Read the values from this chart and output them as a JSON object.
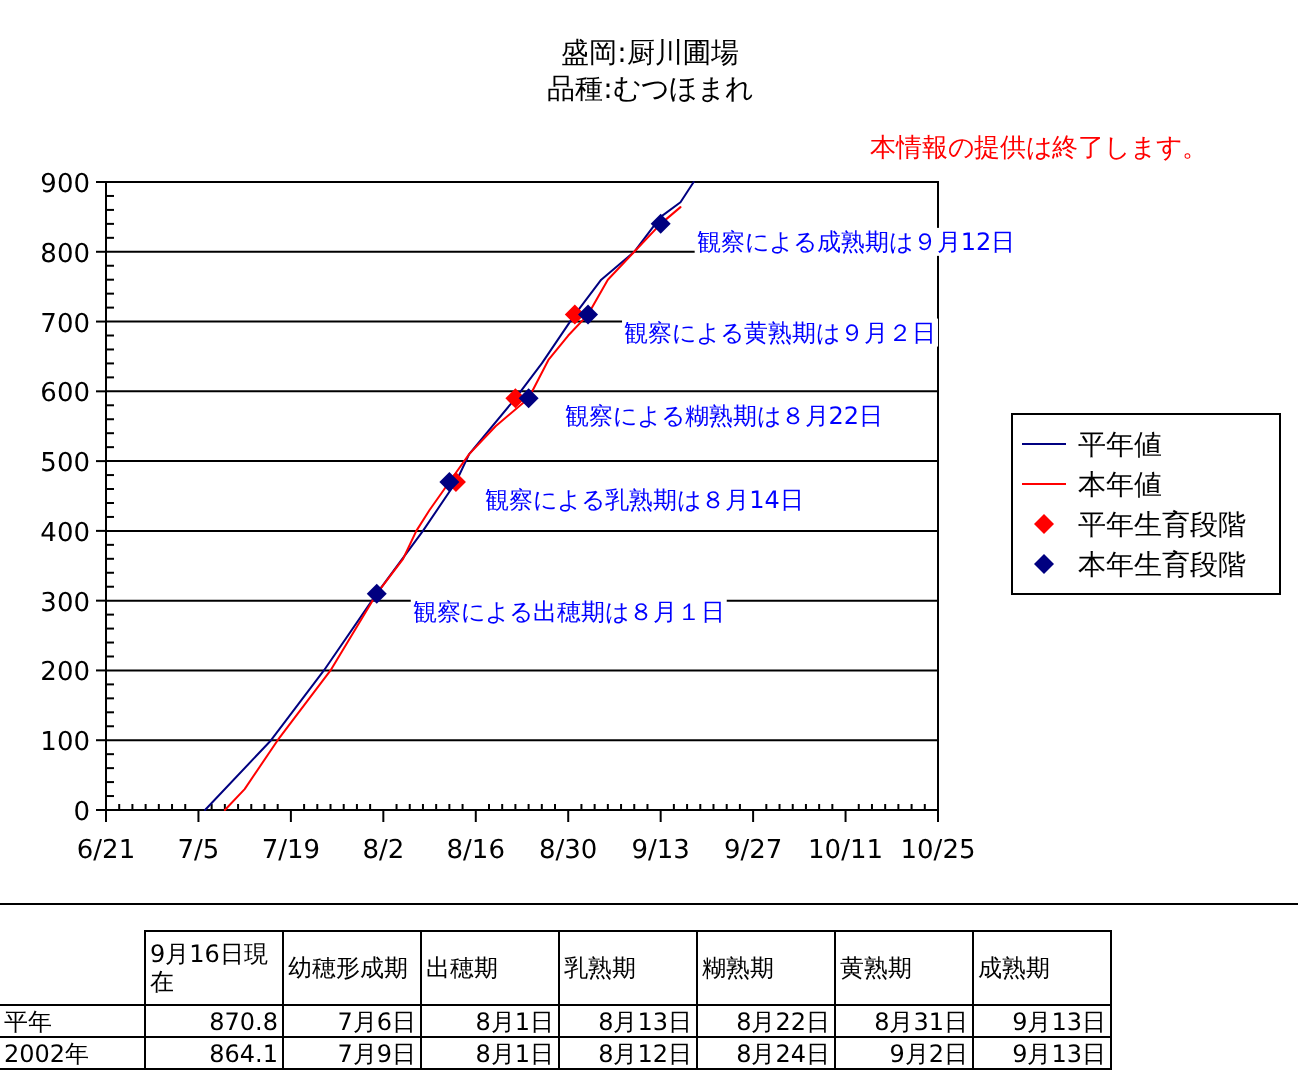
{
  "chart_data": {
    "type": "line",
    "title": "盛岡:厨川圃場",
    "subtitle": "品種:むつほまれ",
    "xlim": [
      "--06-21",
      "--10-25"
    ],
    "xticks": [
      {
        "value": "--06-21",
        "label": "6/21"
      },
      {
        "value": "--07-05",
        "label": "7/5"
      },
      {
        "value": "--07-19",
        "label": "7/19"
      },
      {
        "value": "--08-02",
        "label": "8/2"
      },
      {
        "value": "--08-16",
        "label": "8/16"
      },
      {
        "value": "--08-30",
        "label": "8/30"
      },
      {
        "value": "--09-13",
        "label": "9/13"
      },
      {
        "value": "--09-27",
        "label": "9/27"
      },
      {
        "value": "--10-11",
        "label": "10/11"
      },
      {
        "value": "--10-25",
        "label": "10/25"
      }
    ],
    "ylim": [
      0,
      900
    ],
    "yticks": [
      0,
      100,
      200,
      300,
      400,
      500,
      600,
      700,
      800,
      900
    ],
    "grid": "y",
    "legend": "right",
    "series": [
      {
        "name": "平年値",
        "type": "line",
        "color": "#000080",
        "x": [
          "--07-06",
          "--07-16",
          "--07-24",
          "--08-01",
          "--08-08",
          "--08-13",
          "--08-15",
          "--08-22",
          "--08-26",
          "--08-31",
          "--09-04",
          "--09-09",
          "--09-13",
          "--09-16",
          "--09-18"
        ],
        "values": [
          0,
          100,
          200,
          310,
          400,
          470,
          510,
          590,
          640,
          710,
          760,
          800,
          850,
          871,
          900
        ]
      },
      {
        "name": "本年値",
        "type": "line",
        "color": "#ff0000",
        "x": [
          "--07-09",
          "--07-12",
          "--07-17",
          "--07-25",
          "--08-01",
          "--08-05",
          "--08-07",
          "--08-09",
          "--08-12",
          "--08-15",
          "--08-19",
          "--08-24",
          "--08-27",
          "--08-30",
          "--09-02",
          "--09-05",
          "--09-09",
          "--09-13",
          "--09-16"
        ],
        "values": [
          0,
          30,
          100,
          200,
          310,
          360,
          400,
          430,
          470,
          510,
          550,
          590,
          645,
          680,
          710,
          760,
          800,
          840,
          864
        ]
      },
      {
        "name": "平年生育段階",
        "type": "scatter",
        "marker": "diamond",
        "color": "#ff0000",
        "x": [
          "--08-13",
          "--08-22",
          "--08-31"
        ],
        "values": [
          470,
          590,
          710
        ]
      },
      {
        "name": "本年生育段階",
        "type": "scatter",
        "marker": "diamond",
        "color": "#000080",
        "x": [
          "--08-01",
          "--08-12",
          "--08-24",
          "--09-02",
          "--09-13"
        ],
        "values": [
          310,
          470,
          590,
          710,
          840
        ]
      }
    ],
    "annotations": [
      "本情報の提供は終了します。",
      {
        "text": "観察による成熟期は９月12日",
        "x": "--09-13",
        "y": 840
      },
      {
        "text": "観察による黄熟期は９月２日",
        "x": "--09-02",
        "y": 710
      },
      {
        "text": "観察による糊熟期は８月22日",
        "x": "--08-24",
        "y": 590
      },
      {
        "text": "観察による乳熟期は８月14日",
        "x": "--08-12",
        "y": 470
      },
      {
        "text": "観察による出穂期は８月１日",
        "x": "--08-01",
        "y": 310
      },
      "9月16日現在",
      "幼穂形成期",
      "出穂期",
      "乳熟期",
      "糊熟期",
      "黄熟期",
      "成熟期",
      "平年",
      "870.8",
      "7月6日",
      "8月1日",
      "8月13日",
      "8月22日",
      "8月31日",
      "9月13日",
      "2002年",
      "864.1",
      "7月9日",
      "8月1日",
      "8月12日",
      "8月24日",
      "9月2日",
      "9月13日"
    ]
  }
}
